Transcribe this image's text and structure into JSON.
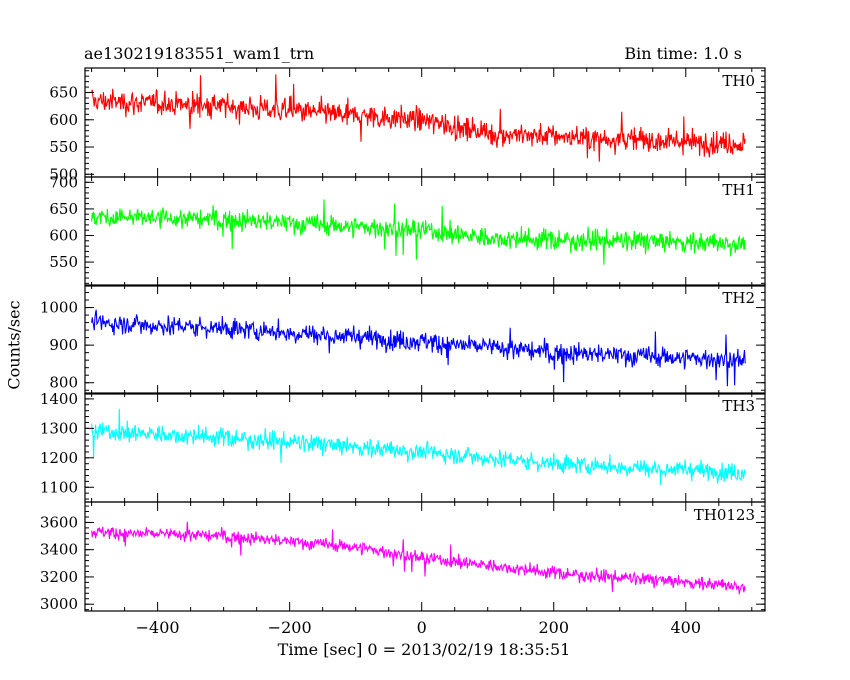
{
  "header": {
    "title": "ae130219183551_wam1_trn",
    "bin_time": "Bin time: 1.0 s"
  },
  "chart_data": {
    "type": "line",
    "title": "ae130219183551_wam1_trn",
    "subtitle": "Bin time: 1.0 s",
    "xlabel": "Time [sec] 0 = 2013/02/19 18:35:51",
    "ylabel": "Counts/sec",
    "xlim": [
      -510,
      520
    ],
    "x_ticks": [
      -400,
      -200,
      0,
      200,
      400
    ],
    "x_tick_labels": [
      "−400",
      "−200",
      "0",
      "200",
      "400"
    ],
    "x_range": [
      -500,
      490
    ],
    "panels": [
      {
        "name": "TH0",
        "color": "#ff0000",
        "ylim": [
          495,
          695
        ],
        "y_ticks": [
          500,
          550,
          600,
          650
        ],
        "y_tick_labels": [
          "500",
          "550",
          "600",
          "650"
        ],
        "trend": [
          [
            -500,
            635
          ],
          [
            -300,
            625
          ],
          [
            0,
            600
          ],
          [
            100,
            575
          ],
          [
            490,
            555
          ]
        ],
        "noise": 28
      },
      {
        "name": "TH1",
        "color": "#00ff00",
        "ylim": [
          505,
          710
        ],
        "y_ticks": [
          550,
          600,
          650,
          700
        ],
        "y_tick_labels": [
          "550",
          "600",
          "650",
          "700"
        ],
        "trend": [
          [
            -500,
            635
          ],
          [
            -300,
            630
          ],
          [
            0,
            610
          ],
          [
            100,
            595
          ],
          [
            490,
            585
          ]
        ],
        "noise": 25
      },
      {
        "name": "TH2",
        "color": "#0000ff",
        "ylim": [
          770,
          1060
        ],
        "y_ticks": [
          800,
          900,
          1000
        ],
        "y_tick_labels": [
          "800",
          "900",
          "1000"
        ],
        "trend": [
          [
            -500,
            960
          ],
          [
            -300,
            945
          ],
          [
            0,
            910
          ],
          [
            200,
            880
          ],
          [
            490,
            860
          ]
        ],
        "noise": 35
      },
      {
        "name": "TH3",
        "color": "#00ffff",
        "ylim": [
          1050,
          1420
        ],
        "y_ticks": [
          1100,
          1200,
          1300,
          1400
        ],
        "y_tick_labels": [
          "1100",
          "1200",
          "1300",
          "1400"
        ],
        "trend": [
          [
            -500,
            1290
          ],
          [
            -300,
            1270
          ],
          [
            0,
            1220
          ],
          [
            200,
            1180
          ],
          [
            490,
            1150
          ]
        ],
        "noise": 40
      },
      {
        "name": "TH0123",
        "color": "#ff00ff",
        "ylim": [
          2950,
          3750
        ],
        "y_ticks": [
          3000,
          3200,
          3400,
          3600
        ],
        "y_tick_labels": [
          "3000",
          "3200",
          "3400",
          "3600"
        ],
        "trend": [
          [
            -500,
            3530
          ],
          [
            -300,
            3500
          ],
          [
            -100,
            3420
          ],
          [
            0,
            3340
          ],
          [
            200,
            3230
          ],
          [
            490,
            3130
          ]
        ],
        "noise": 60
      }
    ]
  }
}
